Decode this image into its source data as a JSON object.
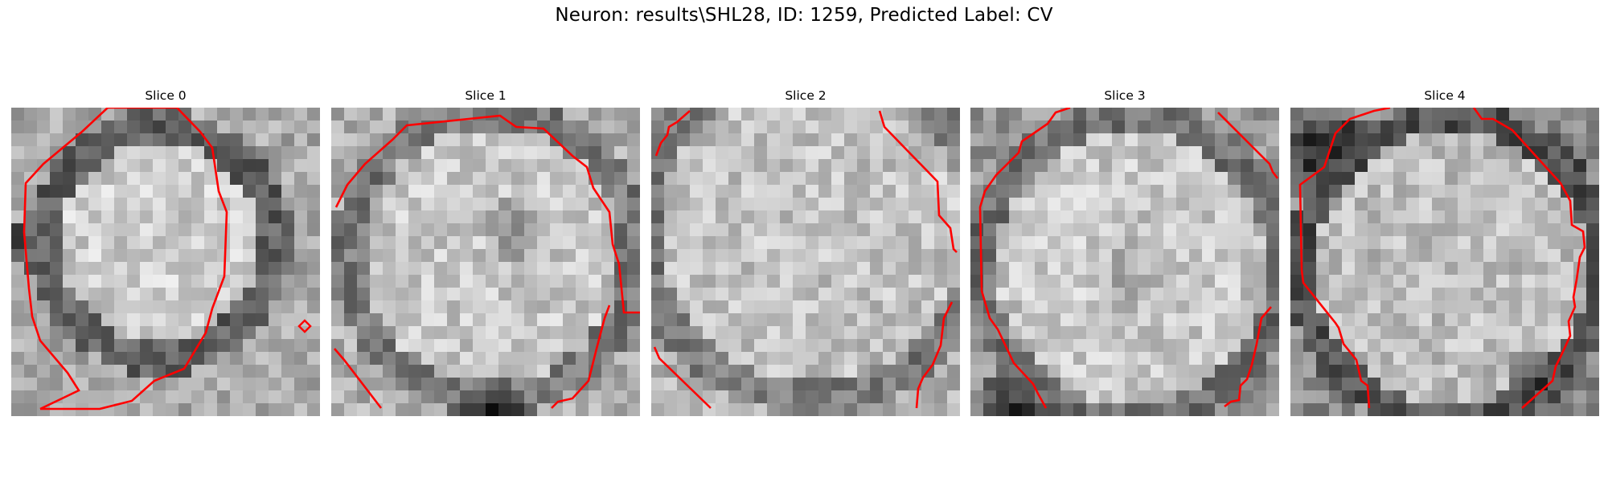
{
  "title": "Neuron: results\\SHL28, ID: 1259, Predicted Label: CV",
  "contour_color": "#ff0000",
  "panels": [
    {
      "label": "Slice 0"
    },
    {
      "label": "Slice 1"
    },
    {
      "label": "Slice 2"
    },
    {
      "label": "Slice 3"
    },
    {
      "label": "Slice 4"
    }
  ]
}
